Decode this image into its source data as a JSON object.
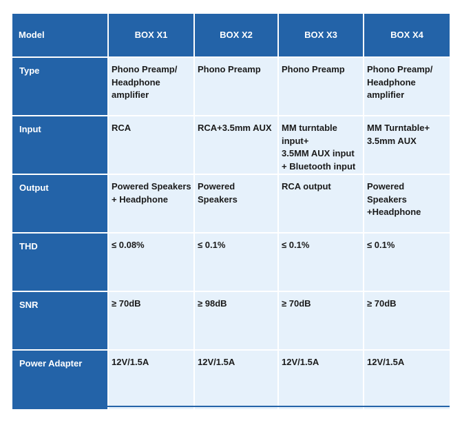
{
  "table": {
    "header": {
      "label": "Model",
      "columns": [
        "BOX X1",
        "BOX X2",
        "BOX X3",
        "BOX X4"
      ]
    },
    "rows": [
      {
        "label": "Type",
        "values": [
          "Phono Preamp/\nHeadphone\namplifier",
          "Phono Preamp",
          "Phono Preamp",
          "Phono Preamp/\nHeadphone\namplifier"
        ]
      },
      {
        "label": "Input",
        "values": [
          "RCA",
          "RCA+3.5mm AUX",
          "MM turntable\ninput+\n3.5MM AUX input\n+ Bluetooth input",
          "MM Turntable+\n3.5mm AUX"
        ]
      },
      {
        "label": "Output",
        "values": [
          "Powered Speakers\n+ Headphone",
          "Powered\n Speakers",
          "RCA output",
          "Powered\nSpeakers\n+Headphone"
        ]
      },
      {
        "label": "THD",
        "values": [
          "≤ 0.08%",
          "≤ 0.1%",
          "≤ 0.1%",
          "≤ 0.1%"
        ]
      },
      {
        "label": "SNR",
        "values": [
          "≥ 70dB",
          "≥ 98dB",
          "≥ 70dB",
          "≥ 70dB"
        ]
      },
      {
        "label": "Power Adapter",
        "values": [
          "12V/1.5A",
          "12V/1.5A",
          "12V/1.5A",
          "12V/1.5A"
        ]
      }
    ]
  },
  "colors": {
    "header_fill": "#2363a8",
    "cell_fill": "#e6f1fb",
    "header_text": "#ffffff",
    "cell_text": "#1a1a1a"
  }
}
